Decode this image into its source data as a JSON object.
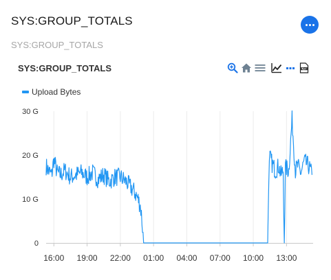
{
  "header": {
    "title": "SYS:GROUP_TOTALS",
    "subtitle": "SYS:GROUP_TOTALS",
    "more_icon": "ellipsis-icon",
    "accent_color": "#1a73e8"
  },
  "toolbar": {
    "icons": [
      "zoom-in-icon",
      "home-icon",
      "menu-icon",
      "line-chart-icon",
      "ellipsis-icon",
      "pdf-export-icon"
    ],
    "icon_color": "#6e8192",
    "active_color": "#1a73e8"
  },
  "chart_data": {
    "type": "line",
    "title": "SYS:GROUP_TOTALS",
    "xlabel": "",
    "ylabel": "",
    "x_tick_labels": [
      "16:00",
      "19:00",
      "22:00",
      "01:00",
      "04:00",
      "07:00",
      "10:00",
      "13:00"
    ],
    "y_tick_labels": [
      "0",
      "10 G",
      "20 G",
      "30 G"
    ],
    "ylim": [
      0,
      30
    ],
    "xlim": [
      15.3,
      39.4
    ],
    "grid": true,
    "legend": "top-left",
    "series": [
      {
        "name": "Upload Bytes",
        "color": "#2196f3",
        "x": [
          15.3,
          15.5,
          15.8,
          16.0,
          16.3,
          16.6,
          17.0,
          17.5,
          18.0,
          18.5,
          19.0,
          19.5,
          20.0,
          20.5,
          21.0,
          21.5,
          22.0,
          22.5,
          23.0,
          23.3,
          23.6,
          23.8,
          23.9,
          24.0,
          24.1,
          24.2,
          27.0,
          30.0,
          33.0,
          35.0,
          35.3,
          35.4,
          35.5,
          35.7,
          36.0,
          36.3,
          36.5,
          36.7,
          36.8,
          36.9,
          37.0,
          37.2,
          37.5,
          37.8,
          38.0,
          38.3,
          38.6,
          39.0,
          39.3
        ],
        "values": [
          17.5,
          16.5,
          15.5,
          19.0,
          16.0,
          15.5,
          16.5,
          15.0,
          15.5,
          16.0,
          15.0,
          16.0,
          14.5,
          15.5,
          14.0,
          15.0,
          15.0,
          14.0,
          12.5,
          11.5,
          10.0,
          8.5,
          6.5,
          3.5,
          0.0,
          0.0,
          0.0,
          0.0,
          0.0,
          0.0,
          0.0,
          15.5,
          19.5,
          18.0,
          16.5,
          17.5,
          15.5,
          16.5,
          0.0,
          17.0,
          17.0,
          16.5,
          28.0,
          16.5,
          17.5,
          16.0,
          18.5,
          17.5,
          15.5
        ]
      }
    ]
  }
}
